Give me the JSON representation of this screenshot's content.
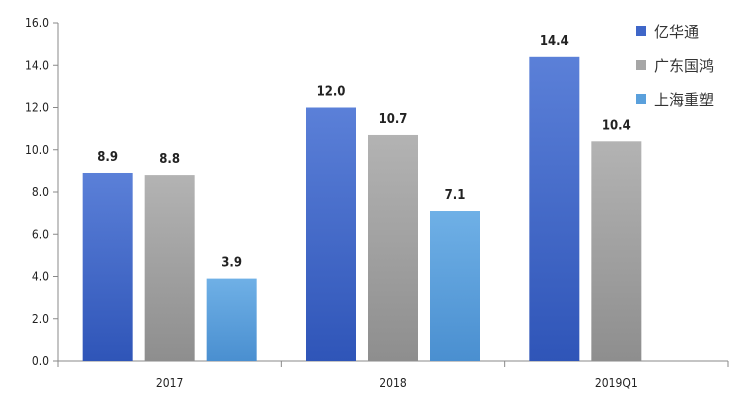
{
  "chart_data": {
    "type": "bar",
    "categories": [
      "2017",
      "2018",
      "2019Q1"
    ],
    "series": [
      {
        "name": "亿华通",
        "values": [
          8.9,
          12.0,
          14.4
        ],
        "color": "#3f66c8"
      },
      {
        "name": "广东国鸿",
        "values": [
          8.8,
          10.7,
          10.4
        ],
        "color": "#a6a6a6"
      },
      {
        "name": "上海重塑",
        "values": [
          3.9,
          7.1,
          null
        ],
        "color": "#5aa0dc"
      }
    ],
    "data_labels": [
      [
        "8.9",
        "12.0",
        "14.4"
      ],
      [
        "8.8",
        "10.7",
        "10.4"
      ],
      [
        "3.9",
        "7.1",
        ""
      ]
    ],
    "y_ticks": [
      "0.0",
      "2.0",
      "4.0",
      "6.0",
      "8.0",
      "10.0",
      "12.0",
      "14.0",
      "16.0"
    ],
    "ylim": [
      0,
      16
    ],
    "grid": false,
    "legend_position": "right"
  }
}
